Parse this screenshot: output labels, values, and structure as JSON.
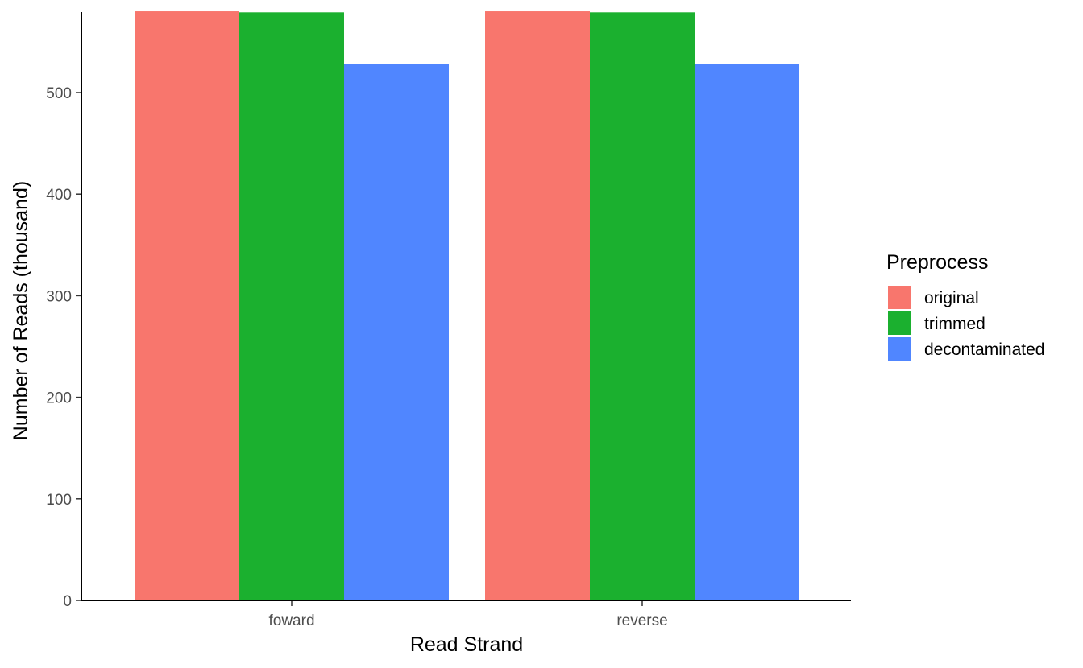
{
  "chart_data": {
    "type": "bar",
    "categories": [
      "foward",
      "reverse"
    ],
    "series": [
      {
        "name": "original",
        "values": [
          580,
          580
        ],
        "color": "#F8766D"
      },
      {
        "name": "trimmed",
        "values": [
          579,
          579
        ],
        "color": "#1BB02F"
      },
      {
        "name": "decontaminated",
        "values": [
          528,
          528
        ],
        "color": "#5086FF"
      }
    ],
    "xlabel": "Read Strand",
    "ylabel": "Number of Reads (thousand)",
    "ylim": [
      0,
      580
    ],
    "yticks": [
      0,
      100,
      200,
      300,
      400,
      500
    ],
    "legend": {
      "title": "Preprocess",
      "position": "right"
    },
    "grid": false
  }
}
